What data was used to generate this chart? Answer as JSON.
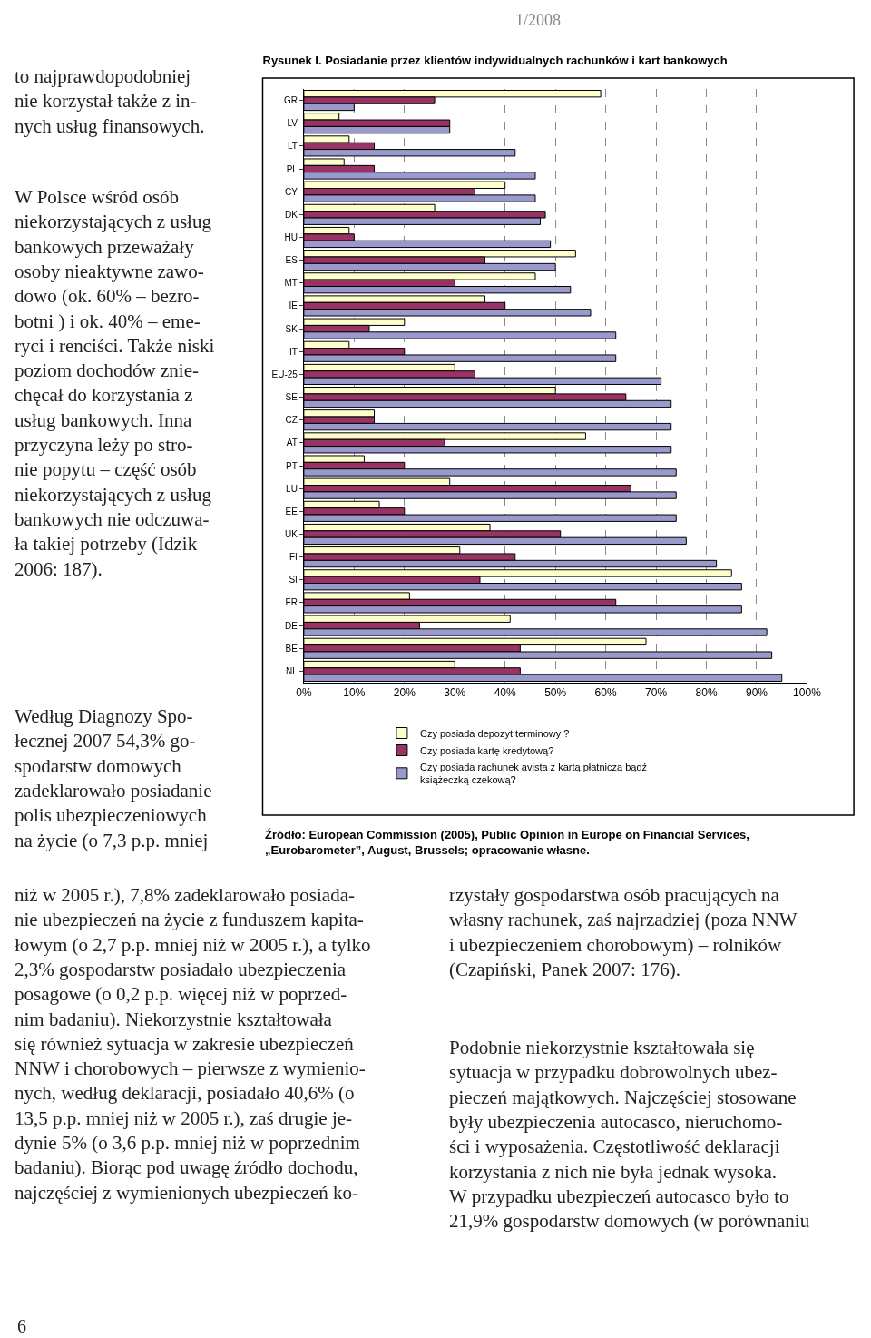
{
  "chart_data": {
    "type": "bar",
    "orientation": "horizontal",
    "title": "Rysunek I. Posiadanie przez klientów indywidualnych rachunków i kart bankowych",
    "categories": [
      "GR",
      "LV",
      "LT",
      "PL",
      "CY",
      "DK",
      "HU",
      "ES",
      "MT",
      "IE",
      "SK",
      "IT",
      "EU-25",
      "SE",
      "CZ",
      "AT",
      "PT",
      "LU",
      "EE",
      "UK",
      "FI",
      "SI",
      "FR",
      "DE",
      "BE",
      "NL"
    ],
    "series": [
      {
        "name": "Czy posiada depozyt terminowy ?",
        "color": "#ffffcc",
        "values": [
          59,
          7,
          9,
          8,
          40,
          26,
          9,
          54,
          46,
          36,
          20,
          9,
          30,
          50,
          14,
          56,
          12,
          29,
          15,
          37,
          31,
          85,
          21,
          41,
          68,
          30
        ]
      },
      {
        "name": "Czy posiada kartę kredytową?",
        "color": "#993366",
        "values": [
          26,
          29,
          14,
          14,
          34,
          48,
          10,
          36,
          30,
          40,
          13,
          20,
          34,
          64,
          14,
          28,
          20,
          65,
          20,
          51,
          42,
          35,
          62,
          23,
          43,
          43
        ]
      },
      {
        "name": "Czy posiada rachunek avista z kartą płatniczą bądź książeczką czekową?",
        "color": "#9999cc",
        "values": [
          10,
          29,
          42,
          46,
          46,
          47,
          49,
          50,
          53,
          57,
          62,
          62,
          71,
          73,
          73,
          73,
          74,
          74,
          74,
          76,
          82,
          87,
          87,
          92,
          93,
          95
        ]
      }
    ],
    "xlim": [
      0,
      100
    ],
    "xticks": [
      {
        "value": 0,
        "label": "0%"
      },
      {
        "value": 10,
        "label": "10%"
      },
      {
        "value": 20,
        "label": "20%"
      },
      {
        "value": 30,
        "label": "30%"
      },
      {
        "value": 40,
        "label": "40%"
      },
      {
        "value": 50,
        "label": "50%"
      },
      {
        "value": 60,
        "label": "60%"
      },
      {
        "value": 70,
        "label": "70%"
      },
      {
        "value": 80,
        "label": "80%"
      },
      {
        "value": 90,
        "label": "90%"
      },
      {
        "value": 100,
        "label": "100%"
      }
    ],
    "grid": "x",
    "legend": "bottom",
    "annotations": [
      "1/2008",
      "to najprawdopodobniej\nnie korzystał także z in-\nnych usług finansowych.",
      "W Polsce wśród osób\nniekorzystających z usług\nbankowych przeważały\nosoby nieaktywne zawo-\ndowo (ok. 60% – bezro-\nbotni ) i ok. 40% – eme-\nryci i renciści. Także niski\npoziom dochodów znie-\nchęcał do korzystania z\nusług bankowych. Inna\nprzyczyna leży po stro-\nnie popytu – część osób\nniekorzystających z usług\nbankowych nie odczuwa-\nła takiej potrzeby (Idzik\n2006: 187).",
      "Według Diagnozy Spo-\nłecznej 2007 54,3% go-\nspodarstw domowych\nzadeklarowało posiadanie\npolis ubezpieczeniowych\nna życie (o 7,3 p.p. mniej",
      "niż w 2005 r.), 7,8% zadeklarowało posiada-\nnie ubezpieczeń na życie z funduszem kapita-\nłowym (o 2,7 p.p. mniej niż w 2005 r.), a tylko\n2,3% gospodarstw posiadało ubezpieczenia\nposagowe (o 0,2 p.p. więcej niż w poprzed-\nnim badaniu). Niekorzystnie kształtowała\nsię również sytuacja w zakresie ubezpieczeń\nNNW i chorobowych – pierwsze z wymienio-\nnych, według deklaracji, posiadało 40,6% (o\n13,5 p.p. mniej niż w 2005 r.), zaś drugie je-\ndynie 5% (o 3,6 p.p. mniej niż w poprzednim\nbadaniu). Biorąc pod uwagę źródło dochodu,\nnajczęściej z wymienionych ubezpieczeń ko-",
      "rzystały gospodarstwa osób pracujących na\nwłasny rachunek, zaś najrzadziej (poza NNW\ni ubezpieczeniem chorobowym) – rolników\n(Czapiński, Panek 2007: 176).",
      "Podobnie niekorzystnie kształtowała się\nsytuacja w przypadku dobrowolnych ubez-\npieczeń majątkowych. Najczęściej stosowane\nbyły ubezpieczenia autocasco, nieruchomo-\nści i wyposażenia. Częstotliwość deklaracji\nkorzystania z nich nie była jednak wysoka.\nW przypadku ubezpieczeń autocasco było to\n21,9% gospodarstw domowych (w porównaniu",
      "Źródło: European Commission (2005), Public Opinion in Europe on Financial Services,\n„Eurobarometer”, August, Brussels; opracowanie własne.",
      "6"
    ]
  }
}
